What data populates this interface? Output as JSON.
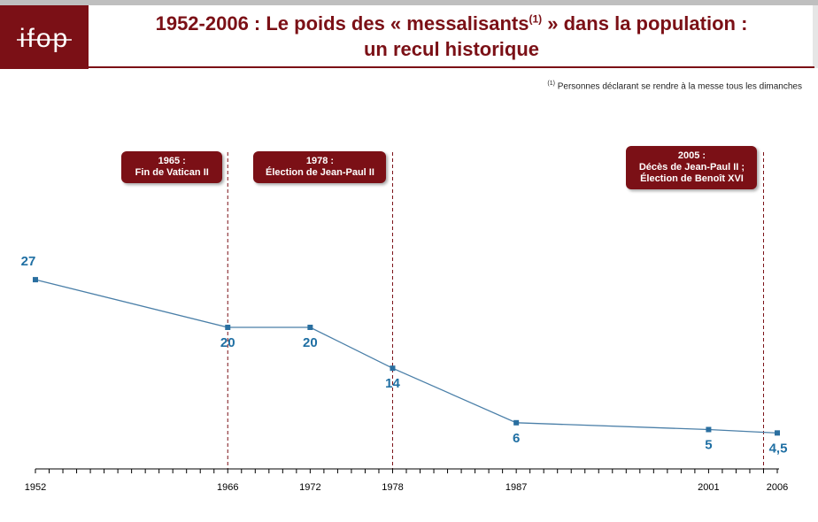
{
  "logo_text": "ifop",
  "title_line1_before": "1952-2006 : Le poids des « messalisants",
  "title_sup": "(1)",
  "title_line1_after": " » dans la population :",
  "title_line2": "un recul historique",
  "footnote_mark": "(1)",
  "footnote_text": " Personnes déclarant se rendre à la messe tous les dimanches",
  "colors": {
    "brand": "#7b1016",
    "line": "#4a7fa8",
    "marker": "#2a6fa0",
    "label": "#1f6fa3"
  },
  "events": [
    {
      "line1": "1965 :",
      "line2": "Fin de Vatican II",
      "line3": "",
      "year": 1966
    },
    {
      "line1": "1978 :",
      "line2": "Élection de Jean-Paul II",
      "line3": "",
      "year": 1978
    },
    {
      "line1": "2005 :",
      "line2": "Décès de Jean-Paul II ;",
      "line3": "Élection de Benoît XVI",
      "year": 2005
    }
  ],
  "chart_data": {
    "type": "line",
    "title": "1952-2006 : Le poids des « messalisants(1) » dans la population : un recul historique",
    "x": [
      1952,
      1966,
      1972,
      1978,
      1987,
      2001,
      2006
    ],
    "x_labels": [
      "1952",
      "1966",
      "1972",
      "1978",
      "1987",
      "2001",
      "2006"
    ],
    "values": [
      27,
      20,
      20,
      14,
      6,
      5,
      4.5
    ],
    "value_labels": [
      "27",
      "20",
      "20",
      "14",
      "6",
      "5",
      "4,5"
    ],
    "xlim": [
      1952,
      2006
    ],
    "ylim": [
      0,
      30
    ],
    "grid": false
  }
}
